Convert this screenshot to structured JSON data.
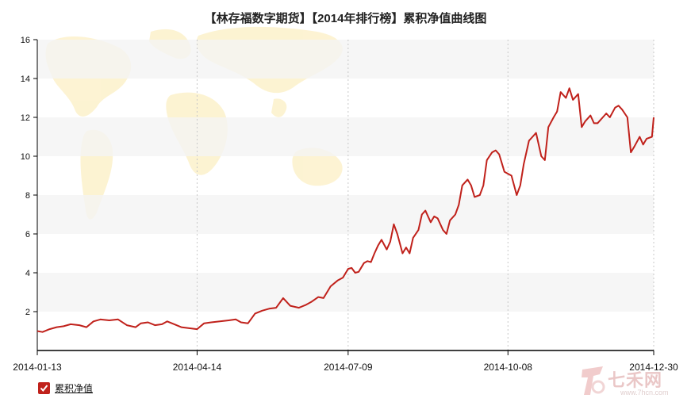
{
  "chart_data": {
    "type": "line",
    "title": "【林存福数字期货】【2014年排行榜】累积净值曲线图",
    "xlabel": "",
    "ylabel": "",
    "ylim": [
      0,
      16
    ],
    "yticks": [
      2,
      4,
      6,
      8,
      10,
      12,
      14,
      16
    ],
    "x_tick_labels": [
      "2014-01-13",
      "2014-04-14",
      "2014-07-09",
      "2014-10-08",
      "2014-12-30"
    ],
    "xlim": [
      "2014-01-13",
      "2014-12-30"
    ],
    "grid": "horizontal bands, dashed vertical lines",
    "legend_position": "bottom-left",
    "color": "#c0211b",
    "series": [
      {
        "name": "累积净值",
        "x": [
          "2014-01-13",
          "2014-01-16",
          "2014-01-20",
          "2014-01-24",
          "2014-01-28",
          "2014-02-01",
          "2014-02-06",
          "2014-02-10",
          "2014-02-14",
          "2014-02-18",
          "2014-02-23",
          "2014-02-28",
          "2014-03-05",
          "2014-03-10",
          "2014-03-13",
          "2014-03-17",
          "2014-03-21",
          "2014-03-25",
          "2014-03-28",
          "2014-04-01",
          "2014-04-05",
          "2014-04-09",
          "2014-04-14",
          "2014-04-18",
          "2014-04-22",
          "2014-04-27",
          "2014-05-02",
          "2014-05-06",
          "2014-05-09",
          "2014-05-13",
          "2014-05-17",
          "2014-05-21",
          "2014-05-25",
          "2014-05-29",
          "2014-06-02",
          "2014-06-06",
          "2014-06-11",
          "2014-06-15",
          "2014-06-18",
          "2014-06-22",
          "2014-06-25",
          "2014-06-29",
          "2014-07-03",
          "2014-07-06",
          "2014-07-09",
          "2014-07-11",
          "2014-07-13",
          "2014-07-15",
          "2014-07-18",
          "2014-07-20",
          "2014-07-22",
          "2014-07-24",
          "2014-07-26",
          "2014-07-28",
          "2014-07-31",
          "2014-08-02",
          "2014-08-04",
          "2014-08-06",
          "2014-08-09",
          "2014-08-11",
          "2014-08-13",
          "2014-08-15",
          "2014-08-18",
          "2014-08-20",
          "2014-08-22",
          "2014-08-25",
          "2014-08-27",
          "2014-08-29",
          "2014-09-01",
          "2014-09-03",
          "2014-09-05",
          "2014-09-08",
          "2014-09-10",
          "2014-09-12",
          "2014-09-15",
          "2014-09-17",
          "2014-09-19",
          "2014-09-22",
          "2014-09-24",
          "2014-09-26",
          "2014-09-29",
          "2014-10-01",
          "2014-10-03",
          "2014-10-06",
          "2014-10-08",
          "2014-10-10",
          "2014-10-13",
          "2014-10-15",
          "2014-10-17",
          "2014-10-20",
          "2014-10-22",
          "2014-10-24",
          "2014-10-27",
          "2014-10-29",
          "2014-10-31",
          "2014-11-03",
          "2014-11-05",
          "2014-11-07",
          "2014-11-10",
          "2014-11-12",
          "2014-11-14",
          "2014-11-17",
          "2014-11-19",
          "2014-11-21",
          "2014-11-24",
          "2014-11-26",
          "2014-11-28",
          "2014-12-01",
          "2014-12-03",
          "2014-12-05",
          "2014-12-08",
          "2014-12-10",
          "2014-12-12",
          "2014-12-15",
          "2014-12-17",
          "2014-12-19",
          "2014-12-22",
          "2014-12-24",
          "2014-12-26",
          "2014-12-29",
          "2014-12-30"
        ],
        "values": [
          1.0,
          0.95,
          1.1,
          1.2,
          1.25,
          1.35,
          1.3,
          1.2,
          1.5,
          1.6,
          1.55,
          1.6,
          1.3,
          1.2,
          1.4,
          1.45,
          1.3,
          1.35,
          1.5,
          1.35,
          1.2,
          1.15,
          1.1,
          1.4,
          1.45,
          1.5,
          1.55,
          1.6,
          1.45,
          1.4,
          1.9,
          2.05,
          2.15,
          2.2,
          2.7,
          2.3,
          2.2,
          2.35,
          2.5,
          2.75,
          2.7,
          3.3,
          3.6,
          3.75,
          4.2,
          4.25,
          4.0,
          4.05,
          4.5,
          4.6,
          4.55,
          5.0,
          5.4,
          5.7,
          5.2,
          5.6,
          6.5,
          6.0,
          5.0,
          5.3,
          5.0,
          5.8,
          6.2,
          7.0,
          7.2,
          6.6,
          6.9,
          6.8,
          6.2,
          6.0,
          6.7,
          7.0,
          7.5,
          8.5,
          8.8,
          8.5,
          7.9,
          8.0,
          8.5,
          9.8,
          10.2,
          10.3,
          10.1,
          9.2,
          9.1,
          9.0,
          8.0,
          8.5,
          9.6,
          10.8,
          11.0,
          11.2,
          10.0,
          9.8,
          11.5,
          12.0,
          12.3,
          13.3,
          13.0,
          13.5,
          12.9,
          13.2,
          11.5,
          11.8,
          12.1,
          11.7,
          11.7,
          12.0,
          12.2,
          12.0,
          12.5,
          12.6,
          12.4,
          12.0,
          10.2,
          10.5,
          11.0,
          10.6,
          10.9,
          11.0,
          12.0
        ]
      }
    ]
  },
  "legend": {
    "label": "累积净值"
  },
  "watermark": {
    "text": "七禾网",
    "url": "www.7hcn.com"
  }
}
